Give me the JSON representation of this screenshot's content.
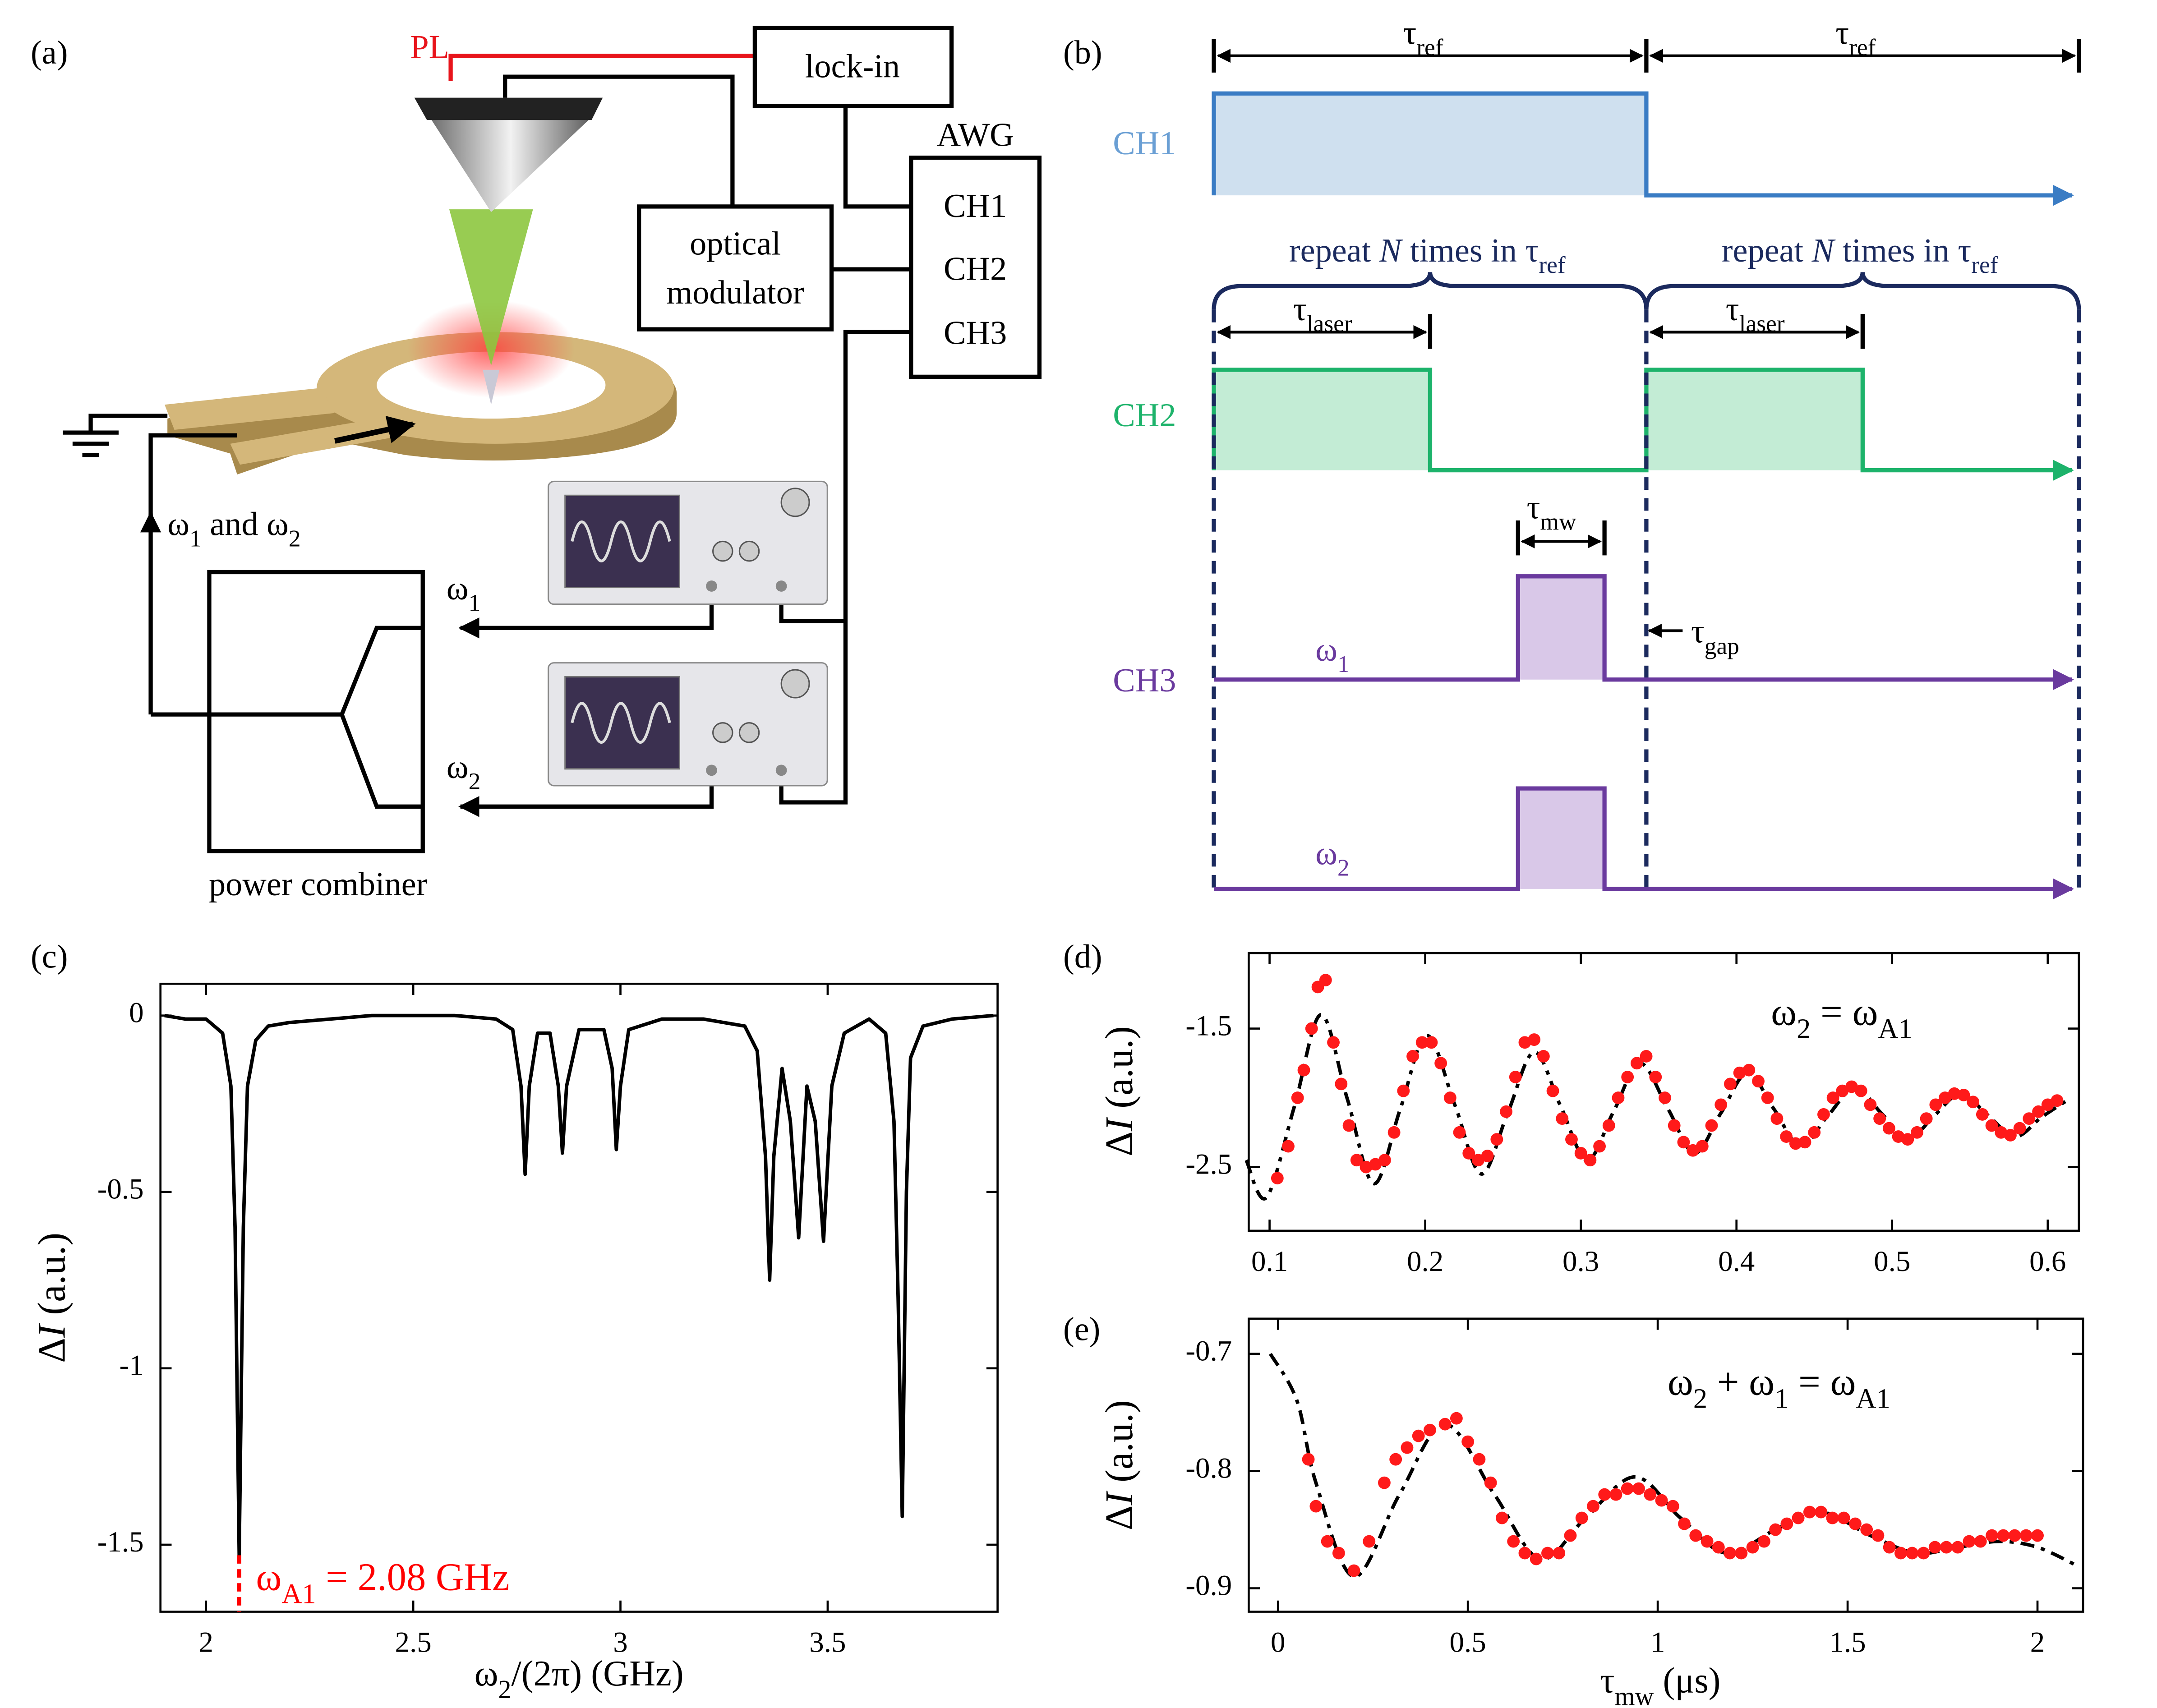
{
  "setup": {
    "label": "(a)",
    "pl": "PL",
    "lock_in": "lock-in",
    "awg": "AWG",
    "channels": [
      "CH1",
      "CH2",
      "CH3"
    ],
    "modulator": [
      "optical",
      "modulator"
    ],
    "input": [
      "ω",
      {
        "sub": "1"
      },
      " and ω",
      {
        "sub": "2"
      }
    ],
    "in1": [
      "ω",
      {
        "sub": "1"
      }
    ],
    "in2": [
      "ω",
      {
        "sub": "2"
      }
    ],
    "combiner": "power combiner"
  },
  "timing": {
    "label": "(b)",
    "ref": [
      [
        "τ",
        {
          "sub": "ref"
        }
      ],
      [
        "τ",
        {
          "sub": "ref"
        }
      ]
    ],
    "channels": [
      "CH1",
      "CH2",
      "CH3"
    ],
    "repeat": [
      [
        "repeat ",
        {
          "i": "N"
        },
        " times in τ",
        {
          "sub": "ref"
        }
      ],
      [
        "repeat ",
        {
          "i": "N"
        },
        " times in τ",
        {
          "sub": "ref"
        }
      ]
    ],
    "laser": [
      [
        "τ",
        {
          "sub": "laser"
        }
      ],
      [
        "τ",
        {
          "sub": "laser"
        }
      ]
    ],
    "mw": [
      "τ",
      {
        "sub": "mw"
      }
    ],
    "gap": [
      "τ",
      {
        "sub": "gap"
      }
    ],
    "tones": [
      [
        "ω",
        {
          "sub": "1"
        }
      ],
      [
        "ω",
        {
          "sub": "2"
        }
      ]
    ]
  },
  "chart_data": [
    {
      "type": "line",
      "panel": "(c)",
      "color": "#000000",
      "x": [
        1.9,
        1.95,
        2.0,
        2.04,
        2.06,
        2.07,
        2.08,
        2.09,
        2.1,
        2.12,
        2.15,
        2.2,
        2.3,
        2.4,
        2.5,
        2.6,
        2.7,
        2.74,
        2.76,
        2.77,
        2.78,
        2.8,
        2.83,
        2.85,
        2.86,
        2.87,
        2.9,
        2.96,
        2.98,
        2.99,
        3.0,
        3.02,
        3.1,
        3.2,
        3.3,
        3.33,
        3.35,
        3.36,
        3.37,
        3.39,
        3.41,
        3.43,
        3.45,
        3.47,
        3.49,
        3.51,
        3.54,
        3.6,
        3.64,
        3.66,
        3.67,
        3.68,
        3.69,
        3.7,
        3.73,
        3.8,
        3.9
      ],
      "values": [
        0,
        -0.01,
        -0.01,
        -0.05,
        -0.2,
        -0.6,
        -1.53,
        -0.6,
        -0.2,
        -0.07,
        -0.03,
        -0.02,
        -0.01,
        0,
        0,
        0,
        -0.01,
        -0.04,
        -0.2,
        -0.45,
        -0.2,
        -0.05,
        -0.05,
        -0.2,
        -0.39,
        -0.2,
        -0.04,
        -0.04,
        -0.15,
        -0.38,
        -0.2,
        -0.04,
        -0.01,
        -0.01,
        -0.03,
        -0.1,
        -0.4,
        -0.75,
        -0.4,
        -0.15,
        -0.3,
        -0.63,
        -0.2,
        -0.3,
        -0.64,
        -0.2,
        -0.05,
        -0.01,
        -0.05,
        -0.3,
        -0.8,
        -1.42,
        -0.5,
        -0.12,
        -0.03,
        -0.01,
        0
      ],
      "xlim": [
        1.89,
        3.91
      ],
      "ylim": [
        -1.69,
        0.09
      ],
      "xticks": [
        2,
        2.5,
        3,
        3.5
      ],
      "yticks": [
        0,
        -0.5,
        -1,
        -1.5
      ],
      "xlabel": [
        "ω",
        {
          "sub": "2"
        },
        "/(2π) (GHz)"
      ],
      "ylabel": [
        "Δ",
        {
          "i": "I"
        },
        " (a.u.)"
      ],
      "annotation": {
        "text": [
          "ω",
          {
            "sub": "A1"
          },
          " = 2.08 GHz"
        ],
        "x": 2.08,
        "color": "#ff0000"
      }
    },
    {
      "type": "scatter",
      "panel": "(d)",
      "series": [
        {
          "mark": "dot",
          "color": "#ff1a1a",
          "x": [
            0.105,
            0.112,
            0.118,
            0.122,
            0.127,
            0.131,
            0.136,
            0.141,
            0.146,
            0.151,
            0.156,
            0.162,
            0.168,
            0.174,
            0.18,
            0.186,
            0.192,
            0.198,
            0.204,
            0.21,
            0.216,
            0.222,
            0.228,
            0.234,
            0.24,
            0.246,
            0.252,
            0.258,
            0.264,
            0.27,
            0.276,
            0.282,
            0.288,
            0.294,
            0.3,
            0.306,
            0.312,
            0.318,
            0.324,
            0.33,
            0.336,
            0.342,
            0.348,
            0.354,
            0.36,
            0.366,
            0.372,
            0.378,
            0.384,
            0.39,
            0.396,
            0.402,
            0.408,
            0.414,
            0.42,
            0.426,
            0.432,
            0.438,
            0.444,
            0.45,
            0.456,
            0.462,
            0.468,
            0.474,
            0.48,
            0.486,
            0.492,
            0.498,
            0.504,
            0.51,
            0.516,
            0.522,
            0.528,
            0.534,
            0.54,
            0.546,
            0.552,
            0.558,
            0.564,
            0.57,
            0.576,
            0.582,
            0.588,
            0.594,
            0.6,
            0.606
          ],
          "values": [
            -2.58,
            -2.35,
            -2.0,
            -1.8,
            -1.5,
            -1.2,
            -1.15,
            -1.6,
            -1.9,
            -2.2,
            -2.45,
            -2.5,
            -2.48,
            -2.45,
            -2.25,
            -1.95,
            -1.7,
            -1.6,
            -1.6,
            -1.75,
            -2.0,
            -2.25,
            -2.4,
            -2.45,
            -2.42,
            -2.3,
            -2.1,
            -1.85,
            -1.6,
            -1.58,
            -1.7,
            -1.95,
            -2.15,
            -2.3,
            -2.4,
            -2.45,
            -2.35,
            -2.2,
            -2.0,
            -1.85,
            -1.75,
            -1.7,
            -1.85,
            -2.0,
            -2.2,
            -2.32,
            -2.38,
            -2.35,
            -2.2,
            -2.05,
            -1.9,
            -1.82,
            -1.8,
            -1.88,
            -2.0,
            -2.15,
            -2.28,
            -2.33,
            -2.32,
            -2.25,
            -2.12,
            -2.0,
            -1.95,
            -1.92,
            -1.95,
            -2.05,
            -2.15,
            -2.22,
            -2.28,
            -2.3,
            -2.25,
            -2.15,
            -2.05,
            -2.0,
            -1.97,
            -1.98,
            -2.03,
            -2.12,
            -2.2,
            -2.25,
            -2.27,
            -2.22,
            -2.15,
            -2.1,
            -2.05,
            -2.02
          ]
        },
        {
          "mark": "dash-dot",
          "color": "#000000",
          "x": [
            0.085,
            0.098,
            0.116,
            0.133,
            0.15,
            0.167,
            0.184,
            0.201,
            0.219,
            0.236,
            0.253,
            0.27,
            0.287,
            0.304,
            0.321,
            0.338,
            0.356,
            0.373,
            0.39,
            0.407,
            0.424,
            0.441,
            0.458,
            0.476,
            0.493,
            0.51,
            0.527,
            0.544,
            0.561,
            0.579,
            0.596,
            0.615
          ],
          "values": [
            -2.45,
            -2.72,
            -2.06,
            -1.4,
            -2.01,
            -2.62,
            -2.08,
            -1.55,
            -2.05,
            -2.55,
            -2.11,
            -1.67,
            -2.06,
            -2.45,
            -2.1,
            -1.75,
            -2.08,
            -2.4,
            -2.11,
            -1.82,
            -2.08,
            -2.35,
            -2.14,
            -1.93,
            -2.11,
            -2.3,
            -2.13,
            -1.97,
            -2.12,
            -2.28,
            -2.14,
            -2.0
          ]
        }
      ],
      "xlim": [
        0.0866,
        0.62
      ],
      "ylim": [
        -2.96,
        -0.955
      ],
      "xticks": [
        0.1,
        0.2,
        0.3,
        0.4,
        0.5,
        0.6
      ],
      "yticks": [
        -1.5,
        -2.5
      ],
      "ylabel": [
        "Δ",
        {
          "i": "I"
        },
        " (a.u.)"
      ],
      "annotation": {
        "text": [
          "ω",
          {
            "sub": "2"
          },
          " = ω",
          {
            "sub": "A1"
          }
        ]
      }
    },
    {
      "type": "scatter",
      "panel": "(e)",
      "series": [
        {
          "mark": "dot",
          "color": "#ff1a1a",
          "x": [
            0.08,
            0.1,
            0.13,
            0.16,
            0.2,
            0.24,
            0.28,
            0.31,
            0.34,
            0.37,
            0.4,
            0.44,
            0.47,
            0.5,
            0.53,
            0.56,
            0.59,
            0.62,
            0.65,
            0.68,
            0.71,
            0.74,
            0.77,
            0.8,
            0.83,
            0.86,
            0.89,
            0.92,
            0.95,
            0.98,
            1.01,
            1.04,
            1.07,
            1.1,
            1.13,
            1.16,
            1.19,
            1.22,
            1.25,
            1.28,
            1.31,
            1.34,
            1.37,
            1.4,
            1.43,
            1.46,
            1.49,
            1.52,
            1.55,
            1.58,
            1.61,
            1.64,
            1.67,
            1.7,
            1.73,
            1.76,
            1.79,
            1.82,
            1.85,
            1.88,
            1.91,
            1.94,
            1.97,
            2.0
          ],
          "values": [
            -0.79,
            -0.83,
            -0.86,
            -0.87,
            -0.885,
            -0.86,
            -0.81,
            -0.79,
            -0.78,
            -0.77,
            -0.765,
            -0.76,
            -0.755,
            -0.775,
            -0.79,
            -0.81,
            -0.84,
            -0.86,
            -0.87,
            -0.875,
            -0.87,
            -0.87,
            -0.855,
            -0.84,
            -0.83,
            -0.82,
            -0.82,
            -0.815,
            -0.815,
            -0.82,
            -0.825,
            -0.83,
            -0.845,
            -0.855,
            -0.86,
            -0.865,
            -0.87,
            -0.87,
            -0.865,
            -0.86,
            -0.85,
            -0.845,
            -0.84,
            -0.835,
            -0.835,
            -0.84,
            -0.84,
            -0.845,
            -0.85,
            -0.855,
            -0.865,
            -0.87,
            -0.87,
            -0.87,
            -0.865,
            -0.865,
            -0.865,
            -0.86,
            -0.86,
            -0.855,
            -0.855,
            -0.855,
            -0.855,
            -0.855
          ]
        },
        {
          "mark": "dash-dot",
          "color": "#000000",
          "x": [
            -0.02,
            0.05,
            0.1,
            0.2,
            0.32,
            0.44,
            0.57,
            0.69,
            0.81,
            0.94,
            1.06,
            1.18,
            1.31,
            1.43,
            1.56,
            1.68,
            1.79,
            1.9,
            2.0,
            2.1
          ],
          "values": [
            -0.7,
            -0.74,
            -0.81,
            -0.89,
            -0.82,
            -0.76,
            -0.82,
            -0.875,
            -0.84,
            -0.805,
            -0.84,
            -0.87,
            -0.85,
            -0.835,
            -0.855,
            -0.87,
            -0.865,
            -0.86,
            -0.865,
            -0.88
          ]
        }
      ],
      "xlim": [
        -0.077,
        2.12
      ],
      "ylim": [
        -0.92,
        -0.67
      ],
      "xticks": [
        0,
        0.5,
        1,
        1.5,
        2
      ],
      "yticks": [
        -0.7,
        -0.8,
        -0.9
      ],
      "xlabel": [
        "τ",
        {
          "sub": "mw"
        },
        " (μs)"
      ],
      "ylabel": [
        "Δ",
        {
          "i": "I"
        },
        " (a.u.)"
      ],
      "annotation": {
        "text": [
          "ω",
          {
            "sub": "2"
          },
          " + ω",
          {
            "sub": "1"
          },
          " = ω",
          {
            "sub": "A1"
          }
        ]
      }
    }
  ]
}
